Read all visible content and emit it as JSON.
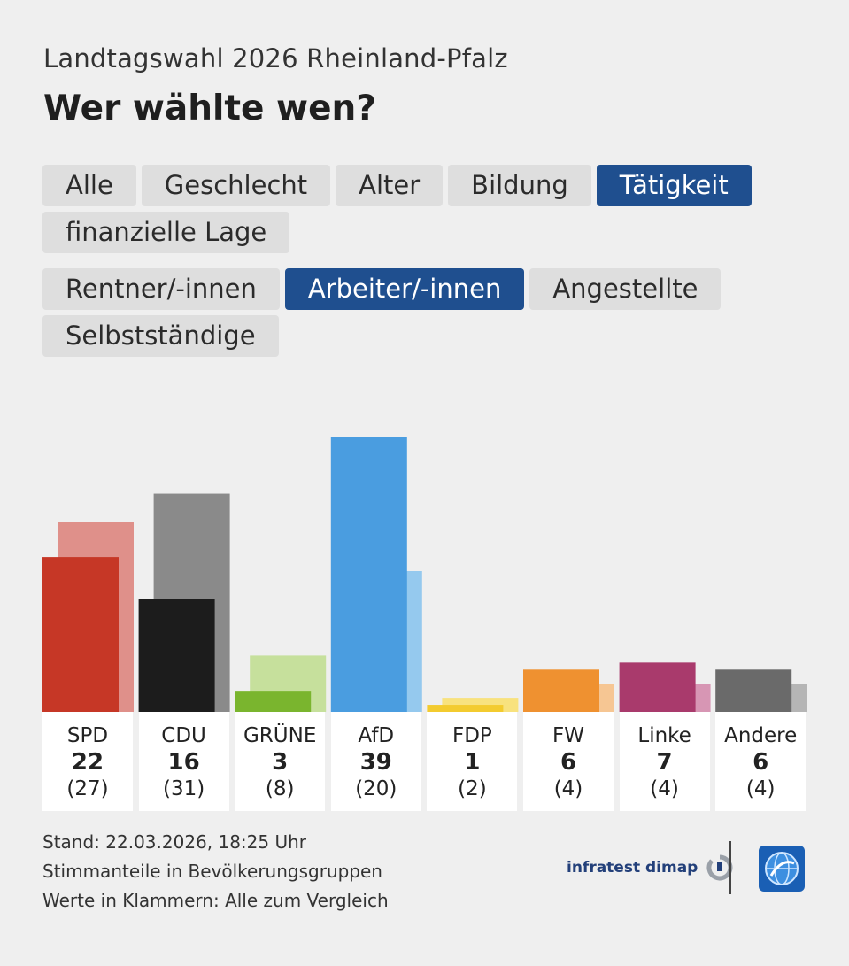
{
  "header": {
    "subtitle": "Landtagswahl 2026 Rheinland-Pfalz",
    "title": "Wer wählte wen?"
  },
  "filters": {
    "categories": [
      {
        "label": "Alle",
        "active": false
      },
      {
        "label": "Geschlecht",
        "active": false
      },
      {
        "label": "Alter",
        "active": false
      },
      {
        "label": "Bildung",
        "active": false
      },
      {
        "label": "Tätigkeit",
        "active": true
      },
      {
        "label": "finanzielle Lage",
        "active": false
      }
    ],
    "groups": [
      {
        "label": "Rentner/-innen",
        "active": false
      },
      {
        "label": "Arbeiter/-innen",
        "active": true
      },
      {
        "label": "Angestellte",
        "active": false
      },
      {
        "label": "Selbstständige",
        "active": false
      }
    ]
  },
  "chart_data": {
    "type": "bar",
    "categories": [
      "SPD",
      "CDU",
      "GRÜNE",
      "AfD",
      "FDP",
      "FW",
      "Linke",
      "Andere"
    ],
    "series": [
      {
        "values": [
          22,
          16,
          3,
          39,
          1,
          6,
          7,
          6
        ]
      },
      {
        "values": [
          27,
          31,
          8,
          20,
          2,
          4,
          4,
          4
        ]
      }
    ],
    "value_labels": [
      "22",
      "16",
      "3",
      "39",
      "1",
      "6",
      "7",
      "6"
    ],
    "comparison_labels": [
      "(27)",
      "(31)",
      "(8)",
      "(20)",
      "(2)",
      "(4)",
      "(4)",
      "(4)"
    ],
    "colors_main": [
      "#c63726",
      "#1c1c1c",
      "#7ab52e",
      "#4a9de0",
      "#f3cb2f",
      "#ef9130",
      "#a93a6c",
      "#6a6a6a"
    ],
    "colors_ref": [
      "#df908a",
      "#8a8a8a",
      "#c6e09c",
      "#95c9ee",
      "#f8e27e",
      "#f6c693",
      "#d796b4",
      "#b5b5b5"
    ],
    "ylim": [
      0,
      39
    ],
    "grid": false,
    "legend": "none"
  },
  "footer": {
    "line1": "Stand: 22.03.2026, 18:25 Uhr",
    "line2": "Stimmanteile in Bevölkerungsgruppen",
    "line3": "Werte in Klammern: Alle zum Vergleich"
  },
  "brand": {
    "name": "infratest dimap",
    "logo_icon": "tagesschau-globe-icon"
  }
}
